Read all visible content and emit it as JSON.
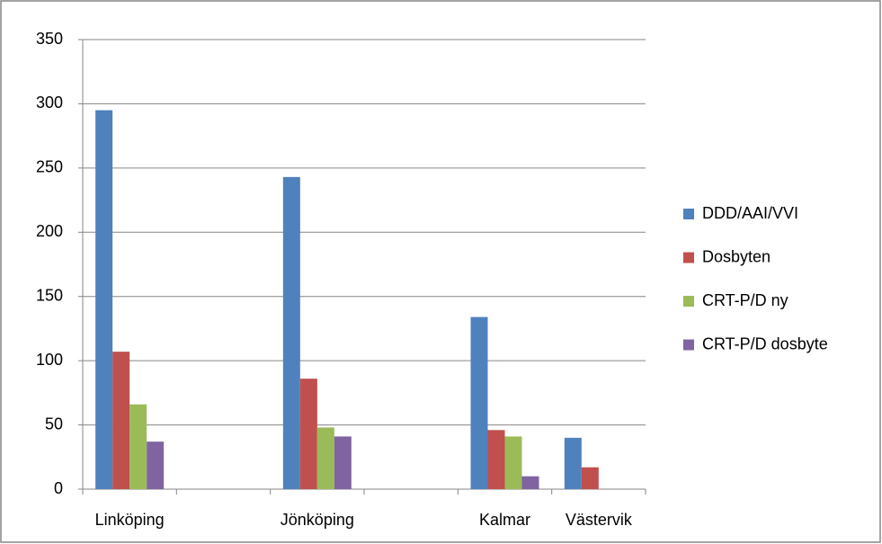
{
  "chart_data": {
    "type": "bar",
    "categories": [
      "Linköping",
      null,
      "Jönköping",
      null,
      "Kalmar",
      "Västervik"
    ],
    "series": [
      {
        "name": "DDD/AAI/VVI",
        "color": "#4f81bd",
        "values": [
          295,
          null,
          243,
          null,
          134,
          40
        ]
      },
      {
        "name": "Dosbyten",
        "color": "#c0504d",
        "values": [
          107,
          null,
          86,
          null,
          46,
          17
        ]
      },
      {
        "name": "CRT-P/D ny",
        "color": "#9bbb59",
        "values": [
          66,
          null,
          48,
          null,
          41,
          null
        ]
      },
      {
        "name": "CRT-P/D dosbyte",
        "color": "#8064a2",
        "values": [
          37,
          null,
          41,
          null,
          10,
          null
        ]
      }
    ],
    "ylim": [
      0,
      350
    ],
    "yticks": [
      0,
      50,
      100,
      150,
      200,
      250,
      300,
      350
    ],
    "grid": true,
    "legend": "right"
  }
}
